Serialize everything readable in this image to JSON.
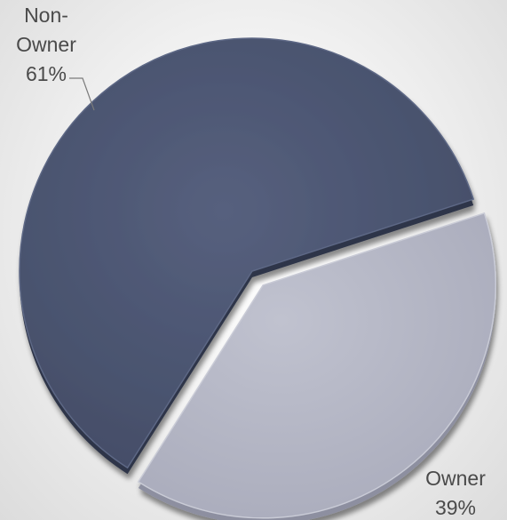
{
  "chart_data": {
    "type": "pie",
    "exploded": true,
    "shading": "3d-beveled",
    "slices": [
      {
        "label": "Non-Owner",
        "label_lines": [
          "Non-",
          "Owner"
        ],
        "value": 61,
        "value_label": "61%",
        "color": "#4b5571"
      },
      {
        "label": "Owner",
        "label_lines": [
          "Owner"
        ],
        "value": 39,
        "value_label": "39%",
        "color": "#b2b4c3"
      }
    ]
  }
}
